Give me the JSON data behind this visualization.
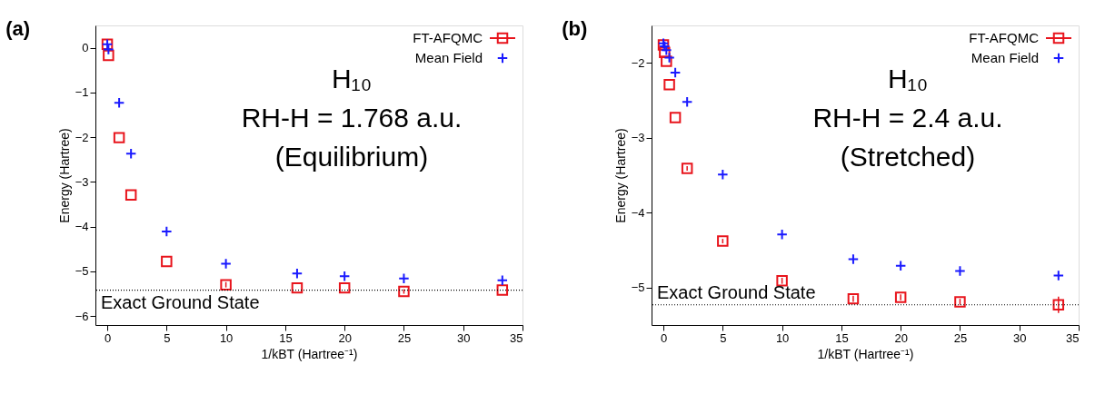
{
  "chart_data": [
    {
      "type": "scatter",
      "title": "(a)",
      "xlabel": "1/kBT (Hartree⁻¹)",
      "ylabel": "Energy (Hartree)",
      "xlim": [
        -1,
        35
      ],
      "ylim": [
        -6.2,
        0.5
      ],
      "xticks": [
        0,
        5,
        10,
        15,
        20,
        25,
        30,
        35
      ],
      "yticks": [
        -6,
        -5,
        -4,
        -3,
        -2,
        -1,
        0
      ],
      "grid": false,
      "legend": "top right",
      "annotations": [
        "H₁₀",
        "RH-H = 1.768 a.u.",
        "(Equilibrium)"
      ],
      "ref_lines": [
        {
          "axis": "y",
          "value": -5.42,
          "label": "Exact Ground State",
          "color": "#000000",
          "line_style": "dotted"
        }
      ],
      "series": [
        {
          "name": "FT-AFQMC",
          "color": "#e8141c",
          "marker": "square",
          "x": [
            0,
            0.1,
            1,
            2,
            5,
            10,
            16,
            20,
            25,
            33.3
          ],
          "values": [
            0.08,
            -0.17,
            -2.01,
            -3.29,
            -4.78,
            -5.3,
            -5.37,
            -5.37,
            -5.45,
            -5.42
          ],
          "errors": [
            null,
            null,
            null,
            null,
            null,
            0.06,
            null,
            null,
            0.05,
            null
          ]
        },
        {
          "name": "Mean Field",
          "color": "#1a1aff",
          "marker": "cross",
          "x": [
            0,
            0.1,
            1,
            2,
            5,
            10,
            16,
            20,
            25,
            33.3
          ],
          "values": [
            0.08,
            -0.04,
            -1.23,
            -2.37,
            -4.11,
            -4.83,
            -5.05,
            -5.11,
            -5.16,
            -5.2
          ]
        }
      ]
    },
    {
      "type": "scatter",
      "title": "(b)",
      "xlabel": "1/kBT (Hartree⁻¹)",
      "ylabel": "Energy (Hartree)",
      "xlim": [
        -1,
        35
      ],
      "ylim": [
        -5.5,
        -1.5
      ],
      "xticks": [
        0,
        5,
        10,
        15,
        20,
        25,
        30,
        35
      ],
      "yticks": [
        -5,
        -4,
        -3,
        -2
      ],
      "grid": false,
      "legend": "top right",
      "annotations": [
        "H₁₀",
        "RH-H = 2.4 a.u.",
        "(Stretched)"
      ],
      "ref_lines": [
        {
          "axis": "y",
          "value": -5.23,
          "label": "Exact Ground State",
          "color": "#000000",
          "line_style": "dotted"
        }
      ],
      "series": [
        {
          "name": "FT-AFQMC",
          "color": "#e8141c",
          "marker": "square",
          "x": [
            0,
            0.1,
            0.25,
            0.5,
            1,
            2,
            5,
            10,
            16,
            20,
            25,
            33.3
          ],
          "values": [
            -1.76,
            -1.86,
            -1.98,
            -2.29,
            -2.73,
            -3.41,
            -4.38,
            -4.91,
            -5.15,
            -5.13,
            -5.19,
            -5.23
          ],
          "errors": [
            null,
            null,
            null,
            null,
            null,
            0.03,
            0.03,
            0.04,
            0.04,
            0.04,
            0.04,
            0.11
          ]
        },
        {
          "name": "Mean Field",
          "color": "#1a1aff",
          "marker": "cross",
          "x": [
            0,
            0.1,
            0.25,
            0.5,
            1,
            2,
            5,
            10,
            16,
            20,
            25,
            33.3
          ],
          "values": [
            -1.74,
            -1.78,
            -1.83,
            -1.93,
            -2.13,
            -2.52,
            -3.49,
            -4.29,
            -4.62,
            -4.71,
            -4.78,
            -4.84
          ]
        }
      ]
    }
  ]
}
